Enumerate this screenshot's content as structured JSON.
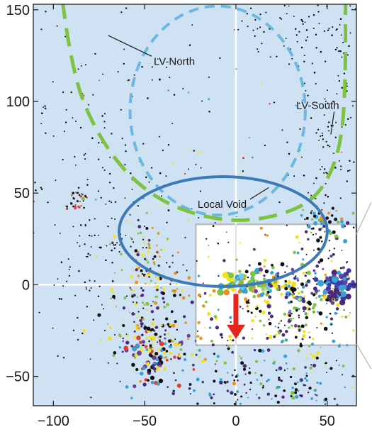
{
  "chart_data": {
    "type": "scatter",
    "title": "",
    "xlabel": "",
    "ylabel": "",
    "xlim": [
      -111,
      66
    ],
    "ylim": [
      -66,
      153
    ],
    "x_ticks": [
      -100,
      -50,
      0,
      50
    ],
    "x_tick_labels": [
      "−100",
      "−50",
      "0",
      "50"
    ],
    "y_ticks": [
      -50,
      0,
      50,
      100,
      150
    ],
    "y_tick_labels": [
      "−50",
      "0",
      "50",
      "100",
      "150"
    ],
    "grid": false,
    "background_color": "#cfe2f3",
    "inset_region": {
      "x": [
        -22,
        66
      ],
      "y": [
        -33,
        33
      ],
      "fill": "#ffffff",
      "border": "#bdbdbd"
    },
    "zero_lines": true,
    "regions": [
      {
        "name": "LV-North",
        "label": "LV-North",
        "style": "dashed",
        "color": "#6cb8e0",
        "center": [
          -10,
          95
        ],
        "semi_axes": [
          48,
          57
        ],
        "label_pos": [
          -45,
          120
        ],
        "leader_to": [
          -70,
          136
        ]
      },
      {
        "name": "LV-South",
        "label": "LV-South",
        "style": "long-dashed",
        "color": "#7dc242",
        "label_pos": [
          33,
          96
        ],
        "leader_to": [
          52,
          82
        ],
        "path": [
          [
            -95,
            155
          ],
          [
            -90,
            115
          ],
          [
            -75,
            80
          ],
          [
            -55,
            55
          ],
          [
            -30,
            40
          ],
          [
            0,
            34
          ],
          [
            25,
            38
          ],
          [
            42,
            46
          ],
          [
            52,
            60
          ],
          [
            58,
            80
          ],
          [
            60,
            110
          ],
          [
            60,
            154
          ]
        ]
      },
      {
        "name": "Local Void",
        "label": "Local Void",
        "style": "solid",
        "color": "#3d7ab8",
        "center": [
          -7,
          29
        ],
        "semi_axes": [
          57,
          30
        ],
        "label_pos": [
          -21,
          42
        ],
        "leader_to": [
          18,
          53
        ]
      }
    ],
    "arrow": {
      "from": [
        0,
        -5
      ],
      "to": [
        0,
        -28
      ],
      "color": "#e8221c"
    },
    "groups": [
      {
        "name": "upper-left field",
        "center": [
          -70,
          70
        ],
        "spread": [
          30,
          45
        ],
        "count": 170,
        "palette": [
          "#111111"
        ],
        "size": [
          0.9,
          1.3
        ]
      },
      {
        "name": "left column",
        "center": [
          -80,
          10
        ],
        "spread": [
          12,
          35
        ],
        "count": 90,
        "palette": [
          "#111111"
        ],
        "size": [
          0.9,
          1.3
        ]
      },
      {
        "name": "right field",
        "center": [
          48,
          80
        ],
        "spread": [
          13,
          55
        ],
        "count": 190,
        "palette": [
          "#111111"
        ],
        "size": [
          0.9,
          1.3
        ]
      },
      {
        "name": "far-left cluster",
        "center": [
          -88,
          44
        ],
        "spread": [
          4,
          3
        ],
        "count": 28,
        "palette": [
          "#111111",
          "#e23b2a",
          "#8b5a2b"
        ],
        "size": [
          1.0,
          1.8
        ]
      },
      {
        "name": "left filament",
        "center": [
          -50,
          5
        ],
        "spread": [
          10,
          20
        ],
        "count": 150,
        "palette": [
          "#111111",
          "#f2e21c",
          "#7dc242",
          "#e8911c",
          "#4a2a7a"
        ],
        "size": [
          1.0,
          2.4
        ]
      },
      {
        "name": "lower-left cluster",
        "center": [
          -45,
          -38
        ],
        "spread": [
          8,
          10
        ],
        "count": 110,
        "palette": [
          "#4a2a7a",
          "#6a3fa0",
          "#e23b2a",
          "#f2e21c",
          "#111111",
          "#3aa0d8"
        ],
        "size": [
          1.2,
          3.6
        ]
      },
      {
        "name": "lower-left scatter",
        "center": [
          -35,
          -25
        ],
        "spread": [
          18,
          14
        ],
        "count": 90,
        "palette": [
          "#111111",
          "#4a2a7a",
          "#f2e21c",
          "#7dc242",
          "#e8911c"
        ],
        "size": [
          1.0,
          2.6
        ]
      },
      {
        "name": "supergalactic plane",
        "center": [
          8,
          0
        ],
        "spread": [
          12,
          3
        ],
        "count": 75,
        "palette": [
          "#f2e21c",
          "#7dc242",
          "#3aa0d8",
          "#e8911c",
          "#6fcdea"
        ],
        "size": [
          2.2,
          4.8
        ]
      },
      {
        "name": "right plane band",
        "center": [
          35,
          -2
        ],
        "spread": [
          16,
          9
        ],
        "count": 160,
        "palette": [
          "#111111",
          "#4a2a7a",
          "#3aa0d8",
          "#f2e21c",
          "#7dc242",
          "#6a3fa0"
        ],
        "size": [
          1.0,
          3.2
        ]
      },
      {
        "name": "right dense cluster",
        "center": [
          56,
          -2
        ],
        "spread": [
          4,
          4
        ],
        "count": 70,
        "palette": [
          "#4a2a7a",
          "#3a3aa8",
          "#6a3fa0",
          "#3aa0d8"
        ],
        "size": [
          2.2,
          4.8
        ]
      },
      {
        "name": "upper-right cluster",
        "center": [
          47,
          33
        ],
        "spread": [
          8,
          5
        ],
        "count": 55,
        "palette": [
          "#4a2a7a",
          "#111111",
          "#3aa0d8",
          "#7dc242",
          "#e8911c"
        ],
        "size": [
          1.2,
          3.2
        ]
      },
      {
        "name": "lower-right field",
        "center": [
          30,
          -35
        ],
        "spread": [
          25,
          18
        ],
        "count": 140,
        "palette": [
          "#111111",
          "#4a2a7a",
          "#3aa0d8",
          "#f2e21c",
          "#7dc242"
        ],
        "size": [
          1.0,
          2.8
        ]
      },
      {
        "name": "bottom band",
        "center": [
          10,
          -55
        ],
        "spread": [
          30,
          7
        ],
        "count": 90,
        "palette": [
          "#111111",
          "#4a2a7a",
          "#3aa0d8"
        ],
        "size": [
          1.0,
          2.2
        ]
      },
      {
        "name": "inset field",
        "center": [
          20,
          -10
        ],
        "spread": [
          30,
          18
        ],
        "count": 130,
        "palette": [
          "#111111",
          "#3aa0d8",
          "#f2e21c",
          "#7dc242",
          "#e8911c",
          "#4a2a7a"
        ],
        "size": [
          1.0,
          2.6
        ]
      },
      {
        "name": "void interior (sparse)",
        "center": [
          -10,
          60
        ],
        "spread": [
          40,
          35
        ],
        "count": 55,
        "palette": [
          "#111111",
          "#3aa0d8",
          "#e23b2a",
          "#f2e21c"
        ],
        "size": [
          0.9,
          1.5
        ]
      },
      {
        "name": "top-right field",
        "center": [
          30,
          140
        ],
        "spread": [
          20,
          10
        ],
        "count": 60,
        "palette": [
          "#111111"
        ],
        "size": [
          0.9,
          1.3
        ]
      }
    ]
  }
}
